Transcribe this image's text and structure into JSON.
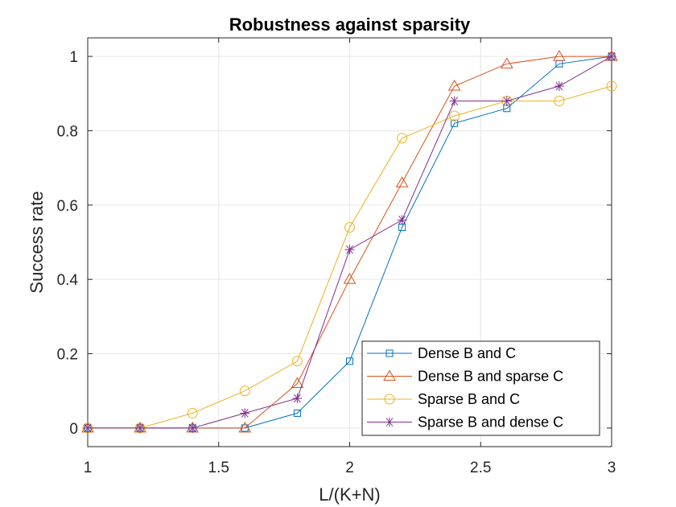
{
  "chart_data": {
    "type": "line",
    "title": "Robustness against sparsity",
    "xlabel": "L/(K+N)",
    "ylabel": "Success rate",
    "xlim": [
      1,
      3
    ],
    "ylim": [
      -0.05,
      1.05
    ],
    "xticks": [
      1,
      1.5,
      2,
      2.5,
      3
    ],
    "xtick_labels": [
      "1",
      "1.5",
      "2",
      "2.5",
      "3"
    ],
    "yticks": [
      0,
      0.2,
      0.4,
      0.6,
      0.8,
      1
    ],
    "ytick_labels": [
      "0",
      "0.2",
      "0.4",
      "0.6",
      "0.8",
      "1"
    ],
    "grid": true,
    "legend_position": "bottom-right",
    "x": [
      1,
      1.2,
      1.4,
      1.6,
      1.8,
      2,
      2.2,
      2.4,
      2.6,
      2.8,
      3
    ],
    "series": [
      {
        "name": "Dense B and C",
        "marker": "square",
        "color": "#0072BD",
        "values": [
          0,
          0,
          0,
          0,
          0.04,
          0.18,
          0.54,
          0.82,
          0.86,
          0.98,
          1
        ]
      },
      {
        "name": "Dense B and sparse C",
        "marker": "triangle",
        "color": "#D95319",
        "values": [
          0,
          0,
          0,
          0,
          0.12,
          0.4,
          0.66,
          0.92,
          0.98,
          1,
          1
        ]
      },
      {
        "name": "Sparse B and C",
        "marker": "circle",
        "color": "#EDB120",
        "values": [
          0,
          0,
          0.04,
          0.1,
          0.18,
          0.54,
          0.78,
          0.84,
          0.88,
          0.88,
          0.92
        ]
      },
      {
        "name": "Sparse B and dense C",
        "marker": "asterisk",
        "color": "#7E2F8E",
        "values": [
          0,
          0,
          0,
          0.04,
          0.08,
          0.48,
          0.56,
          0.88,
          0.88,
          0.92,
          1
        ]
      }
    ]
  }
}
